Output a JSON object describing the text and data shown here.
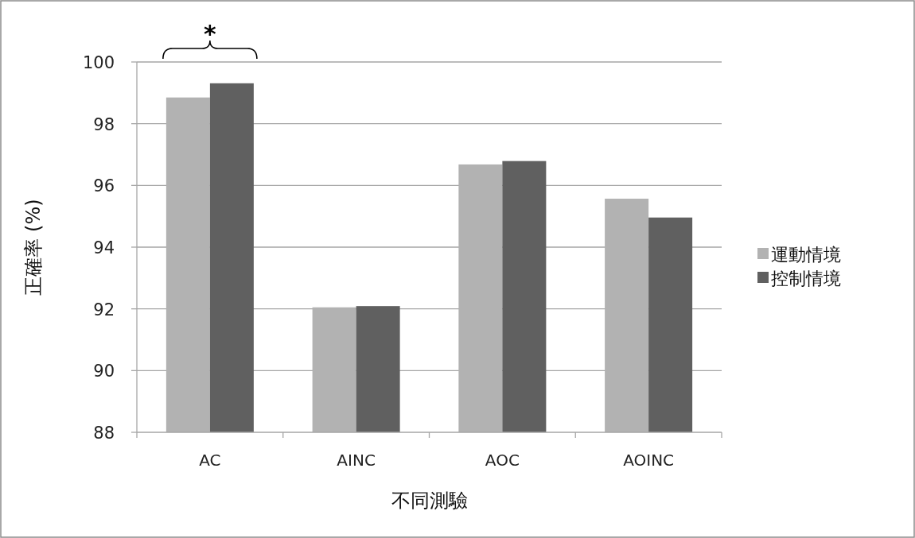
{
  "chart_data": {
    "type": "bar",
    "xlabel": "不同測驗",
    "ylabel": "正確率 (%)",
    "categories": [
      "AC",
      "AINC",
      "AOC",
      "AOINC"
    ],
    "series": [
      {
        "name": "運動情境",
        "color": "#b2b2b2",
        "values": [
          98.85,
          92.05,
          96.68,
          95.57
        ]
      },
      {
        "name": "控制情境",
        "color": "#606060",
        "values": [
          99.31,
          92.09,
          96.79,
          94.96
        ]
      }
    ],
    "ylim": [
      88,
      100
    ],
    "yticks": [
      88,
      90,
      92,
      94,
      96,
      98,
      100
    ],
    "grid": "y",
    "legend": "right",
    "annotations": [
      "*"
    ]
  }
}
